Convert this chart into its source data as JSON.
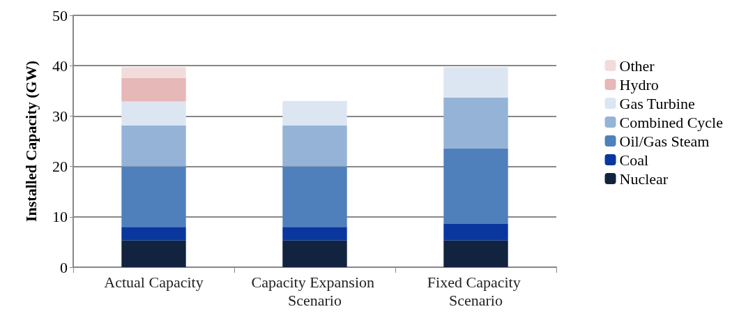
{
  "chart_data": {
    "type": "bar",
    "stacked": true,
    "ylabel": "Installed Capacity (GW)",
    "categories": [
      "Actual Capacity",
      "Capacity Expansion Scenario",
      "Fixed Capacity Scenario"
    ],
    "series": [
      {
        "name": "Nuclear",
        "color": "#12233f",
        "values": [
          5.3,
          5.3,
          5.3
        ]
      },
      {
        "name": "Coal",
        "color": "#0a379e",
        "values": [
          2.7,
          2.7,
          3.3
        ]
      },
      {
        "name": "Oil/Gas Steam",
        "color": "#4f80bc",
        "values": [
          12.0,
          12.0,
          15.0
        ]
      },
      {
        "name": "Combined Cycle",
        "color": "#95b3d7",
        "values": [
          8.1,
          8.1,
          10.1
        ]
      },
      {
        "name": "Gas Turbine",
        "color": "#dce6f2",
        "values": [
          4.8,
          4.9,
          6.0
        ]
      },
      {
        "name": "Hydro",
        "color": "#e6b8b7",
        "values": [
          4.7,
          null,
          null
        ]
      },
      {
        "name": "Other",
        "color": "#f2dcdb",
        "values": [
          2.1,
          null,
          null
        ]
      }
    ],
    "ylim": [
      0,
      50
    ],
    "yticks": [
      0,
      10,
      20,
      30,
      40,
      50
    ],
    "grid": "y",
    "legend": "right"
  }
}
